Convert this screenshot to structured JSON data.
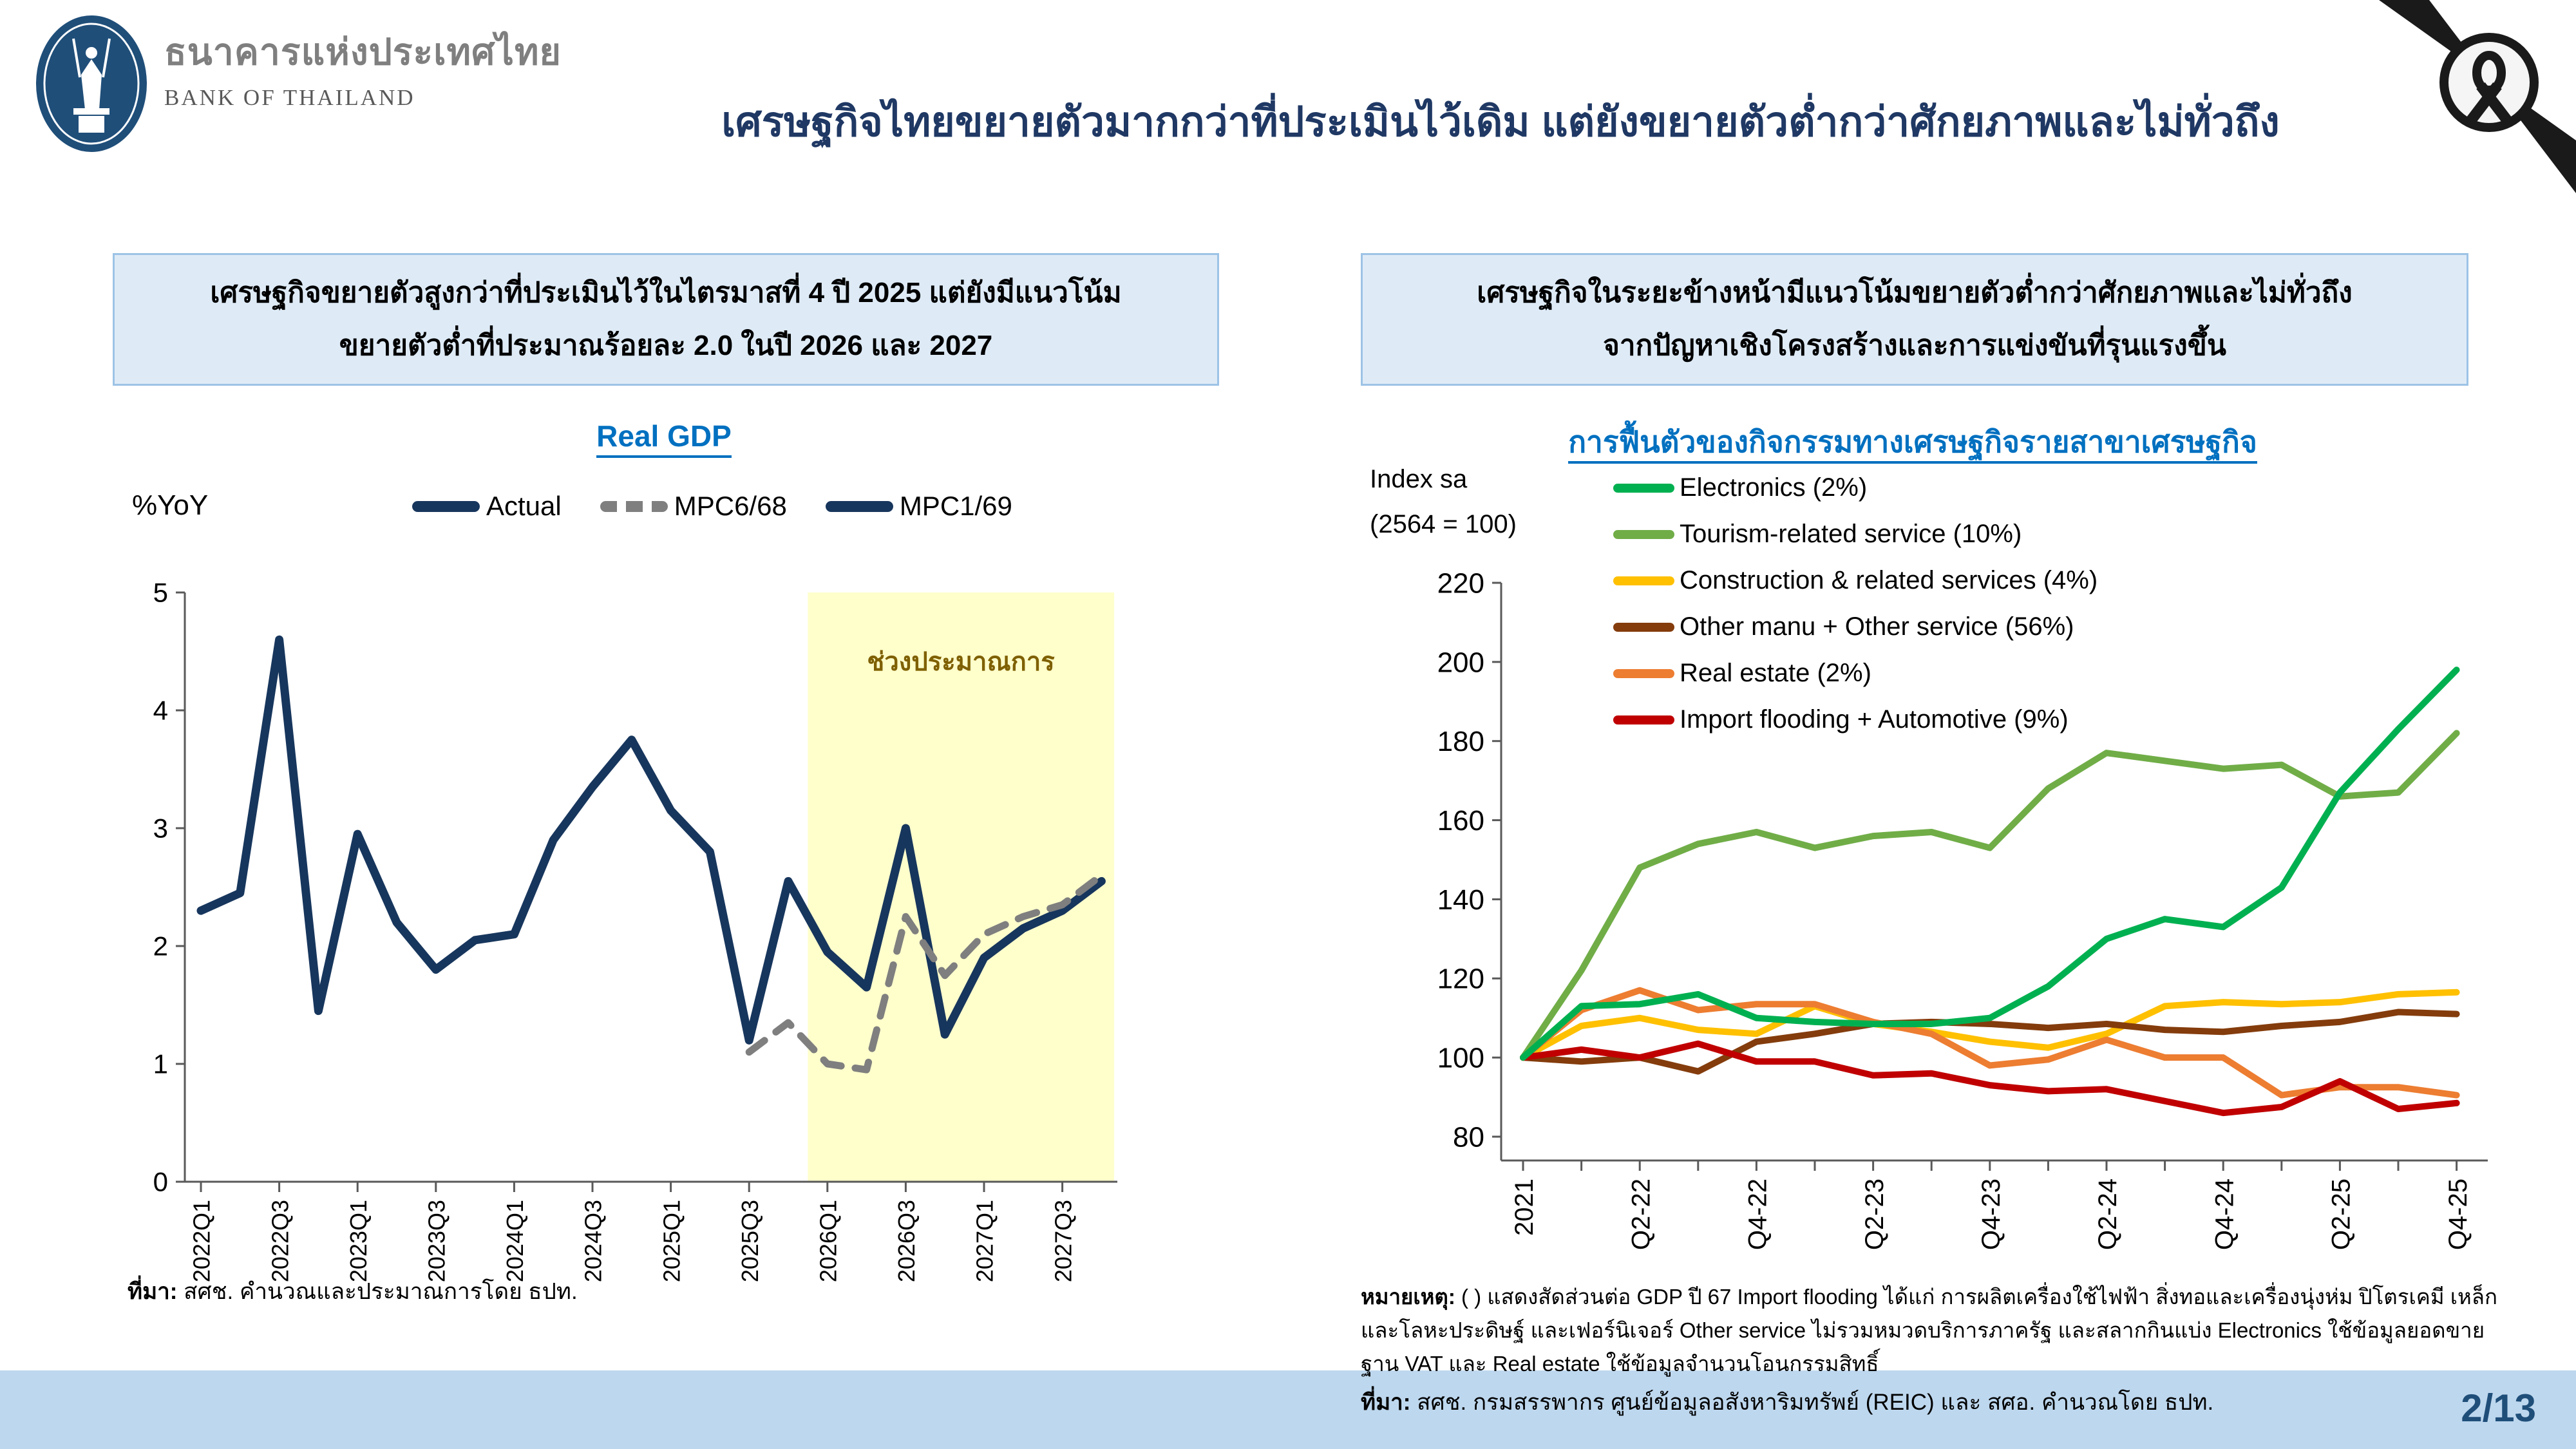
{
  "header": {
    "logo": {
      "org_th": "ธนาคารแห่งประเทศไทย",
      "org_en": "BANK OF THAILAND"
    },
    "title": "เศรษฐกิจไทยขยายตัวมากกว่าที่ประเมินไว้เดิม แต่ยังขยายตัวต่ำกว่าศักยภาพและไม่ทั่วถึง",
    "page_number": "2/13"
  },
  "left_panel": {
    "callout_line1": "เศรษฐกิจขยายตัวสูงกว่าที่ประเมินไว้ในไตรมาสที่ 4 ปี 2025 แต่ยังมีแนวโน้ม",
    "callout_line2": "ขยายตัวต่ำที่ประมาณร้อยละ 2.0 ในปี 2026 และ 2027",
    "chart_title": "Real GDP",
    "y_axis_label": "%YoY",
    "legend": [
      {
        "label": "Actual",
        "color": "#17365d",
        "dash": false
      },
      {
        "label": "MPC6/68",
        "color": "#7f7f7f",
        "dash": true
      },
      {
        "label": "MPC1/69",
        "color": "#17365d",
        "dash": false
      }
    ],
    "source_prefix": "ที่มา:",
    "source_text": " สศช. คำนวณและประมาณการโดย ธปท."
  },
  "right_panel": {
    "callout_line1": "เศรษฐกิจในระยะข้างหน้ามีแนวโน้มขยายตัวต่ำกว่าศักยภาพและไม่ทั่วถึง",
    "callout_line2": "จากปัญหาเชิงโครงสร้างและการแข่งขันที่รุนแรงขึ้น",
    "chart_title": "การฟื้นตัวของกิจกรรมทางเศรษฐกิจรายสาขาเศรษฐกิจ",
    "y_axis_label_line1": "Index sa",
    "y_axis_label_line2": "(2564 = 100)",
    "note_prefix": "หมายเหตุ:",
    "note_text": " ( ) แสดงสัดส่วนต่อ GDP ปี 67  Import flooding ได้แก่ การผลิตเครื่องใช้ไฟฟ้า สิ่งทอและเครื่องนุ่งห่ม ปิโตรเคมี เหล็กและโลหะประดิษฐ์ และเฟอร์นิเจอร์  Other service ไม่รวมหมวดบริการภาครัฐ และสลากกินแบ่ง  Electronics ใช้ข้อมูลยอดขายฐาน VAT  และ Real estate ใช้ข้อมูลจำนวนโอนกรรมสิทธิ์",
    "source_prefix": "ที่มา:",
    "source_text": " สศช. กรมสรรพากร ศูนย์ข้อมูลอสังหาริมทรัพย์ (REIC) และ สศอ. คำนวณโดย ธปท."
  },
  "colors": {
    "title_navy": "#1f3864",
    "chart_title_blue": "#0070c0",
    "callout_fill": "#deebf7",
    "callout_border": "#9dc3e6",
    "forecast_band": "#ffffcc",
    "forecast_label": "#7f6000",
    "bottom_strip": "#bdd7ee",
    "page_number": "#1f4e79",
    "logo_navy": "#1f4e79",
    "ribbon_black": "#1a1a1a"
  },
  "chart_data": [
    {
      "type": "line",
      "title": "Real GDP",
      "ylabel": "%YoY",
      "ylim": [
        0,
        5
      ],
      "yticks": [
        0,
        1,
        2,
        3,
        4,
        5
      ],
      "categories": [
        "2022Q1",
        "2022Q2",
        "2022Q3",
        "2022Q4",
        "2023Q1",
        "2023Q2",
        "2023Q3",
        "2023Q4",
        "2024Q1",
        "2024Q2",
        "2024Q3",
        "2024Q4",
        "2025Q1",
        "2025Q2",
        "2025Q3",
        "2025Q4",
        "2026Q1",
        "2026Q2",
        "2026Q3",
        "2026Q4",
        "2027Q1",
        "2027Q2",
        "2027Q3",
        "2027Q4"
      ],
      "x_tick_indices": [
        0,
        2,
        4,
        6,
        8,
        10,
        12,
        14,
        16,
        18,
        20,
        22
      ],
      "series": [
        {
          "name": "Actual / MPC1/69",
          "color": "#17365d",
          "width": 13,
          "dash": null,
          "values": [
            2.3,
            2.45,
            4.6,
            1.45,
            2.95,
            2.2,
            1.8,
            2.05,
            2.1,
            2.9,
            3.35,
            3.75,
            3.15,
            2.8,
            1.2,
            2.55,
            1.95,
            1.65,
            3.0,
            1.25,
            1.9,
            2.15,
            2.3,
            2.55
          ]
        },
        {
          "name": "MPC6/68",
          "color": "#7f7f7f",
          "width": 11,
          "dash": "30 22",
          "values": [
            null,
            null,
            null,
            null,
            null,
            null,
            null,
            null,
            null,
            null,
            null,
            null,
            null,
            null,
            1.1,
            1.35,
            1.0,
            0.95,
            2.25,
            1.75,
            2.1,
            2.25,
            2.35,
            2.6
          ]
        }
      ],
      "forecast_band": {
        "from_index": 15.5,
        "color": "#ffffcc",
        "label": "ช่วงประมาณการ",
        "label_color": "#7f6000"
      },
      "legend_position": "top",
      "grid": false
    },
    {
      "type": "line",
      "title": "การฟื้นตัวของกิจกรรมทางเศรษฐกิจรายสาขาเศรษฐกิจ",
      "ylabel": "Index sa (2564 = 100)",
      "ylim": [
        80,
        220
      ],
      "yticks": [
        80,
        100,
        120,
        140,
        160,
        180,
        200,
        220
      ],
      "categories": [
        "2021",
        "Q1-22",
        "Q2-22",
        "Q3-22",
        "Q4-22",
        "Q1-23",
        "Q2-23",
        "Q3-23",
        "Q4-23",
        "Q1-24",
        "Q2-24",
        "Q3-24",
        "Q4-24",
        "Q1-25",
        "Q2-25",
        "Q3-25",
        "Q4-25"
      ],
      "x_tick_indices": [
        0,
        2,
        4,
        6,
        8,
        10,
        12,
        14,
        16
      ],
      "series": [
        {
          "name": "Electronics (2%)",
          "color": "#00b050",
          "width": 10,
          "dash": null,
          "values": [
            100,
            113,
            113.5,
            116,
            110,
            109,
            108.5,
            108.5,
            110,
            118,
            130,
            135,
            133,
            143,
            167,
            183,
            198
          ]
        },
        {
          "name": "Tourism-related service (10%)",
          "color": "#70ad47",
          "width": 10,
          "dash": null,
          "values": [
            100,
            122,
            148,
            154,
            157,
            153,
            156,
            157,
            153,
            168,
            177,
            175,
            173,
            174,
            166,
            167,
            182
          ]
        },
        {
          "name": "Construction & related services (4%)",
          "color": "#ffc000",
          "width": 10,
          "dash": null,
          "values": [
            100,
            108,
            110,
            107,
            106,
            113,
            108.5,
            106.5,
            104,
            102.5,
            106,
            113,
            114,
            113.5,
            114,
            116,
            116.5
          ]
        },
        {
          "name": "Other manu + Other service (56%)",
          "color": "#843c0c",
          "width": 10,
          "dash": null,
          "values": [
            100,
            99,
            100,
            96.5,
            104,
            106,
            108.5,
            109,
            108.5,
            107.5,
            108.5,
            107,
            106.5,
            108,
            109,
            111.5,
            111
          ]
        },
        {
          "name": "Real estate (2%)",
          "color": "#ed7d31",
          "width": 10,
          "dash": null,
          "values": [
            100,
            112,
            117,
            112,
            113.5,
            113.5,
            109,
            106,
            98,
            99.5,
            104.5,
            100,
            100,
            90.5,
            92.5,
            92.5,
            90.5
          ]
        },
        {
          "name": "Import flooding + Automotive (9%)",
          "color": "#c00000",
          "width": 10,
          "dash": null,
          "values": [
            100,
            102,
            100,
            103.5,
            99,
            99,
            95.5,
            96,
            93,
            91.5,
            92,
            89,
            86,
            87.5,
            94,
            87,
            88.5
          ]
        }
      ],
      "legend_position": "upper-left",
      "grid": false
    }
  ]
}
